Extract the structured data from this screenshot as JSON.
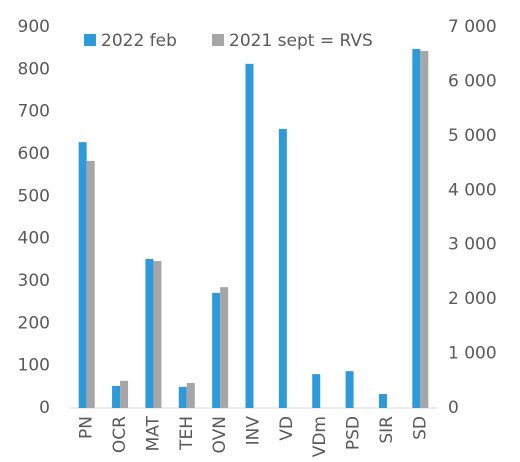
{
  "chart_data": {
    "type": "bar",
    "categories": [
      "PN",
      "OCR",
      "MAT",
      "TEH",
      "OVN",
      "INV",
      "VD",
      "VDm",
      "PSD",
      "SIR",
      "SD"
    ],
    "series": [
      {
        "name": "2022 feb",
        "color": "#2e9ad9",
        "values": [
          628,
          52,
          352,
          50,
          272,
          813,
          659,
          80,
          87,
          33,
          848
        ]
      },
      {
        "name": "2021 sept = RVS",
        "color": "#a6a6a6",
        "axis": "y2",
        "values": [
          4540,
          500,
          2700,
          460,
          2220,
          null,
          null,
          null,
          null,
          null,
          6560
        ]
      }
    ],
    "ylim": [
      0,
      900
    ],
    "yticks": [
      0,
      100,
      200,
      300,
      400,
      500,
      600,
      700,
      800,
      900
    ],
    "y2lim": [
      0,
      7000
    ],
    "y2ticks": [
      0,
      {
        "value": 1000,
        "label": "1 000"
      },
      {
        "value": 2000,
        "label": "2 000"
      },
      {
        "value": 3000,
        "label": "3 000"
      },
      {
        "value": 4000,
        "label": "4 000"
      },
      {
        "value": 5000,
        "label": "5 000"
      },
      {
        "value": 6000,
        "label": "6 000"
      },
      {
        "value": 7000,
        "label": "7 000"
      }
    ],
    "legend": "top",
    "grid": false
  }
}
